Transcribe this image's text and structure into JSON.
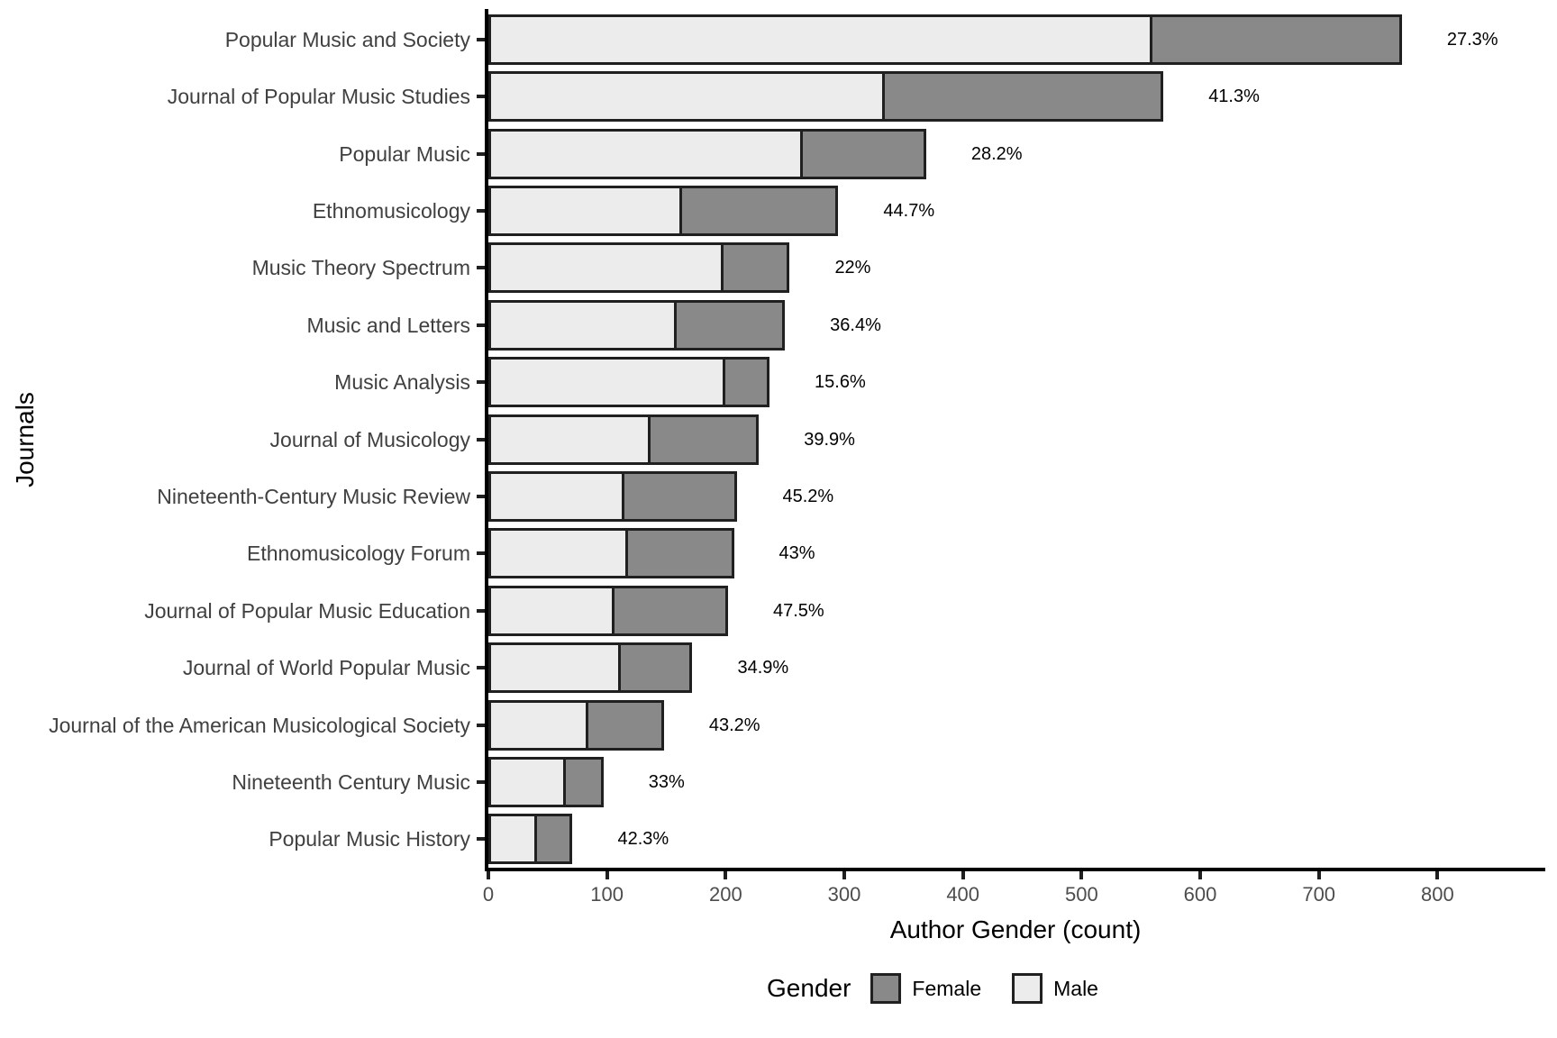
{
  "chart_data": {
    "type": "bar",
    "orientation": "horizontal",
    "stacked": true,
    "title": "",
    "xlabel": "Author Gender (count)",
    "ylabel": "Journals",
    "xlim": [
      0,
      890
    ],
    "x_ticks": [
      0,
      100,
      200,
      300,
      400,
      500,
      600,
      700,
      800
    ],
    "grid": false,
    "legend": {
      "title": "Gender",
      "position": "bottom",
      "items": [
        {
          "label": "Female",
          "color": "#898989"
        },
        {
          "label": "Male",
          "color": "#ececec"
        }
      ]
    },
    "categories": [
      "Popular Music and Society",
      "Journal of Popular Music Studies",
      "Popular Music",
      "Ethnomusicology",
      "Music Theory Spectrum",
      "Music and Letters",
      "Music Analysis",
      "Journal of Musicology",
      "Nineteenth-Century Music Review",
      "Ethnomusicology Forum",
      "Journal of Popular Music Education",
      "Journal of World Popular Music",
      "Journal of the American Musicological Society",
      "Nineteenth Century Music",
      "Popular Music History"
    ],
    "series": [
      {
        "name": "Male",
        "color": "#ececec",
        "values": [
          560,
          334,
          265,
          163,
          198,
          159,
          200,
          137,
          115,
          118,
          106,
          112,
          84,
          65,
          41
        ]
      },
      {
        "name": "Female",
        "color": "#898989",
        "values": [
          210,
          235,
          104,
          132,
          56,
          91,
          37,
          91,
          95,
          89,
          96,
          60,
          64,
          32,
          30
        ]
      }
    ],
    "totals": [
      770,
      569,
      369,
      295,
      254,
      250,
      237,
      228,
      210,
      207,
      202,
      172,
      148,
      97,
      71
    ],
    "bar_labels": [
      "27.3%",
      "41.3%",
      "28.2%",
      "44.7%",
      "22%",
      "36.4%",
      "15.6%",
      "39.9%",
      "45.2%",
      "43%",
      "47.5%",
      "34.9%",
      "43.2%",
      "33%",
      "42.3%"
    ],
    "bar_label_meaning": "Female share of authors per journal"
  }
}
